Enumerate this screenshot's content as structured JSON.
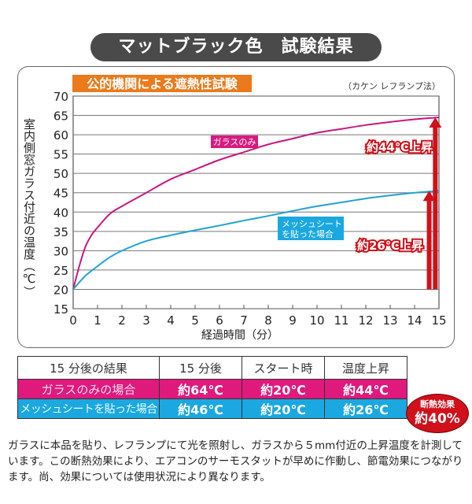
{
  "title": "マットブラック色　試験結果",
  "chart_data": {
    "type": "line",
    "title": "公的機関による遮熱性試験",
    "subtitle": "（カケン レフランプ法）",
    "xlabel": "経過時間（分）",
    "ylabel": "室内側窓ガラス付近の温度（℃）",
    "xlim": [
      0,
      15
    ],
    "ylim": [
      15,
      70
    ],
    "xticks": [
      "0",
      "1",
      "2",
      "3",
      "4",
      "5",
      "6",
      "7",
      "8",
      "9",
      "10",
      "11",
      "12",
      "13",
      "14",
      "15"
    ],
    "yticks": [
      "15",
      "20",
      "25",
      "30",
      "35",
      "40",
      "45",
      "50",
      "55",
      "60",
      "65",
      "70"
    ],
    "grid": true,
    "series": [
      {
        "name": "ガラスのみ",
        "color": "#c8167f",
        "x": [
          0,
          0.25,
          0.5,
          0.75,
          1,
          1.5,
          2,
          3,
          4,
          5,
          6,
          7,
          8,
          9,
          10,
          11,
          12,
          13,
          14,
          15
        ],
        "y": [
          20,
          26,
          31,
          34,
          36,
          39.5,
          41.5,
          45,
          48.5,
          51,
          53.5,
          55.5,
          57.5,
          59,
          60.5,
          61.5,
          62.5,
          63.3,
          64,
          64.5
        ]
      },
      {
        "name": "メッシュシートを貼った場合",
        "color": "#1fa3d6",
        "x": [
          0,
          0.5,
          1,
          1.5,
          2,
          3,
          4,
          5,
          6,
          7,
          8,
          9,
          10,
          11,
          12,
          13,
          14,
          15
        ],
        "y": [
          20,
          23.5,
          26,
          28.3,
          30,
          32.5,
          34,
          35.3,
          36.5,
          37.8,
          39,
          40.3,
          41.5,
          42.5,
          43.5,
          44.3,
          45,
          45.5
        ]
      }
    ],
    "annotations": [
      {
        "text": "約44℃上昇",
        "x": 14.85,
        "from": 20,
        "to": 64.5
      },
      {
        "text": "約26℃上昇",
        "x": 14.6,
        "from": 20,
        "to": 45.5
      }
    ],
    "series_labels": {
      "glass": "ガラスのみ",
      "mesh_line1": "メッシュシート",
      "mesh_line2": "を貼った場合"
    }
  },
  "table": {
    "header": [
      "15 分後の結果",
      "15 分後",
      "スタート時",
      "温度上昇"
    ],
    "rows": [
      [
        "ガラスのみの場合",
        "約64℃",
        "約20℃",
        "約44℃"
      ],
      [
        "メッシュシートを貼った場合",
        "約46℃",
        "約20℃",
        "約26℃"
      ]
    ]
  },
  "badge": {
    "line1": "断熱効果",
    "line2": "約40%"
  },
  "note": "ガラスに本品を貼り、レフランプにて光を照射し、ガラスから５mm付近の上昇温度を計測しています。この断熱効果により、エアコンのサーモスタットが早めに作動し、節電効果につながります。尚、効果については使用状況により異なります。"
}
